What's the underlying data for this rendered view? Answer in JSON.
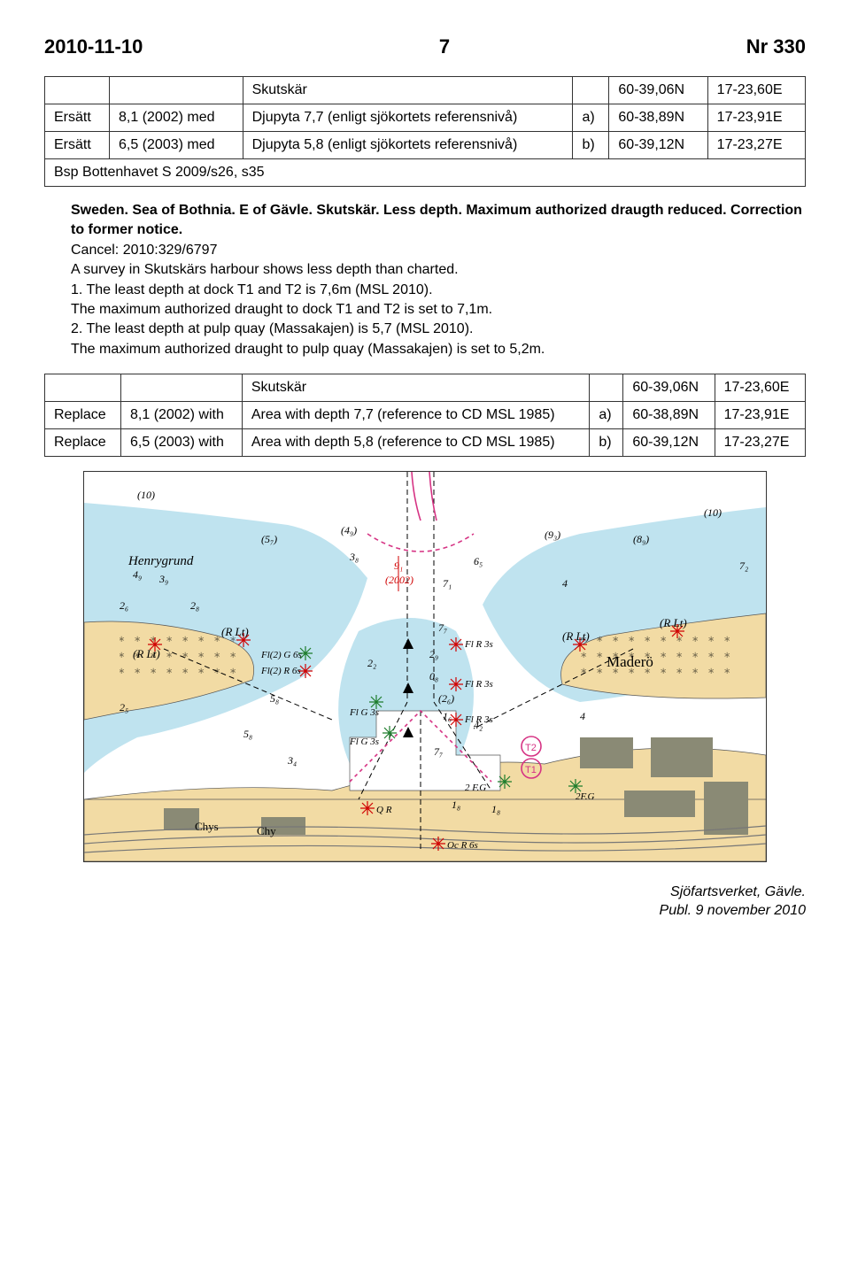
{
  "header": {
    "date": "2010-11-10",
    "page": "7",
    "nr": "Nr  330"
  },
  "table1": {
    "r0": {
      "c1": "Skutskär",
      "c3": "60-39,06N",
      "c4": "17-23,60E"
    },
    "r1": {
      "c0": "Ersätt",
      "c1a": "8,1 (2002) med",
      "c1b": "Djupyta 7,7 (enligt sjökortets referensnivå)",
      "c2": "a)",
      "c3": "60-38,89N",
      "c4": "17-23,91E"
    },
    "r2": {
      "c0": "Ersätt",
      "c1a": "6,5 (2003) med",
      "c1b": "Djupyta 5,8 (enligt sjökortets referensnivå)",
      "c2": "b)",
      "c3": "60-39,12N",
      "c4": "17-23,27E"
    },
    "r3": {
      "span": "Bsp Bottenhavet S 2009/s26, s35"
    }
  },
  "desc": {
    "title": "Sweden. Sea of Bothnia. E of Gävle. Skutskär. Less depth. Maximum authorized draugth reduced. Correction to former notice.",
    "l1": "Cancel: 2010:329/6797",
    "l2": "A survey in Skutskärs harbour shows less depth than charted.",
    "l3": "1. The least depth at dock T1 and T2 is 7,6m (MSL 2010).",
    "l4": "The maximum authorized draught to dock T1 and T2 is set to 7,1m.",
    "l5": "2. The least depth at pulp quay (Massakajen) is 5,7 (MSL 2010).",
    "l6": "The maximum authorized draught to pulp quay (Massakajen) is set to 5,2m."
  },
  "table2": {
    "r0": {
      "c1": "Skutskär",
      "c3": "60-39,06N",
      "c4": "17-23,60E"
    },
    "r1": {
      "c0": "Replace",
      "c1a": "8,1 (2002) with",
      "c1b": "Area with depth 7,7 (reference to CD MSL 1985)",
      "c2": "a)",
      "c3": "60-38,89N",
      "c4": "17-23,91E"
    },
    "r2": {
      "c0": "Replace",
      "c1a": "6,5 (2003) with",
      "c1b": "Area with depth 5,8 (reference to CD MSL 1985)",
      "c2": "b)",
      "c3": "60-39,12N",
      "c4": "17-23,27E"
    }
  },
  "chart": {
    "colors": {
      "land": "#f2dba4",
      "shallow": "#bfe3ef",
      "water": "#ffffff",
      "building": "#8a8a75",
      "road_fill": "#ffffff",
      "road_stroke": "#777",
      "magenta": "#d63384",
      "red": "#d00000",
      "green": "#1c7c2b",
      "black": "#000000"
    },
    "labels": {
      "henry": "Henrygrund",
      "madero": "Maderö",
      "rlt": "(R Lt)",
      "chys": "Chys",
      "chy": "Chy",
      "flg6": "Fl(2) G 6s",
      "flr6": "Fl(2) R 6s",
      "flr3": "Fl R 3s",
      "flg3": "Fl G 3s",
      "qr": "Q R",
      "ocr6": "Oc R 6s",
      "f2g": "2 F.G",
      "f2g2": "2F.G",
      "t1": "T1",
      "t2": "T2",
      "d_2002": "(2002)",
      "d91": "9₁"
    },
    "soundings": [
      "(10)",
      "4₉",
      "3₉",
      "2₆",
      "2₈",
      "2₅",
      "(5₇)",
      "(4₉)",
      "3₈",
      "5₈",
      "5₈",
      "3₄",
      "2₂",
      "0₈",
      "(2₆)",
      "1₆",
      "4₂",
      "7₇",
      "7₇",
      "6₅",
      "7₁",
      "2₉",
      "(9₃)",
      "(8₉)",
      "(10)",
      "7₂",
      "4",
      "4",
      "1₈",
      "1₈"
    ]
  },
  "footer": {
    "l1": "Sjöfartsverket, Gävle.",
    "l2": "Publ. 9 november 2010"
  }
}
